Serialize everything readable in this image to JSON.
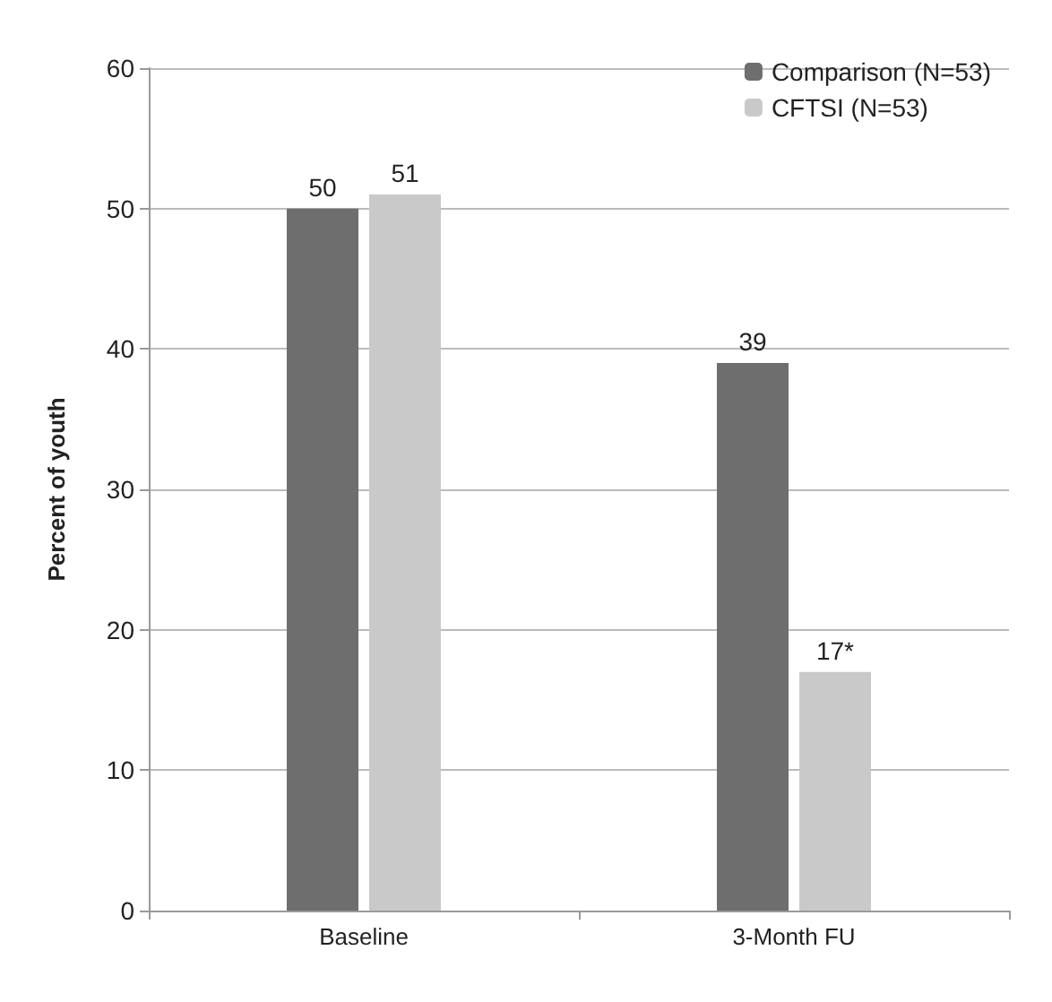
{
  "chart_data": {
    "type": "bar",
    "ylabel": "Percent of youth",
    "categories": [
      "Baseline",
      "3-Month FU"
    ],
    "series": [
      {
        "name": "Comparison (N=53)",
        "color": "#6e6e6e",
        "values": [
          50,
          39
        ],
        "value_labels": [
          "50",
          "39"
        ]
      },
      {
        "name": "CFTSI (N=53)",
        "color": "#c9c9c9",
        "values": [
          51,
          17
        ],
        "value_labels": [
          "51",
          "17*"
        ]
      }
    ],
    "ylim": [
      0,
      60
    ],
    "yticks": [
      0,
      10,
      20,
      30,
      40,
      50,
      60
    ],
    "grid": "y",
    "legend": "top right"
  }
}
